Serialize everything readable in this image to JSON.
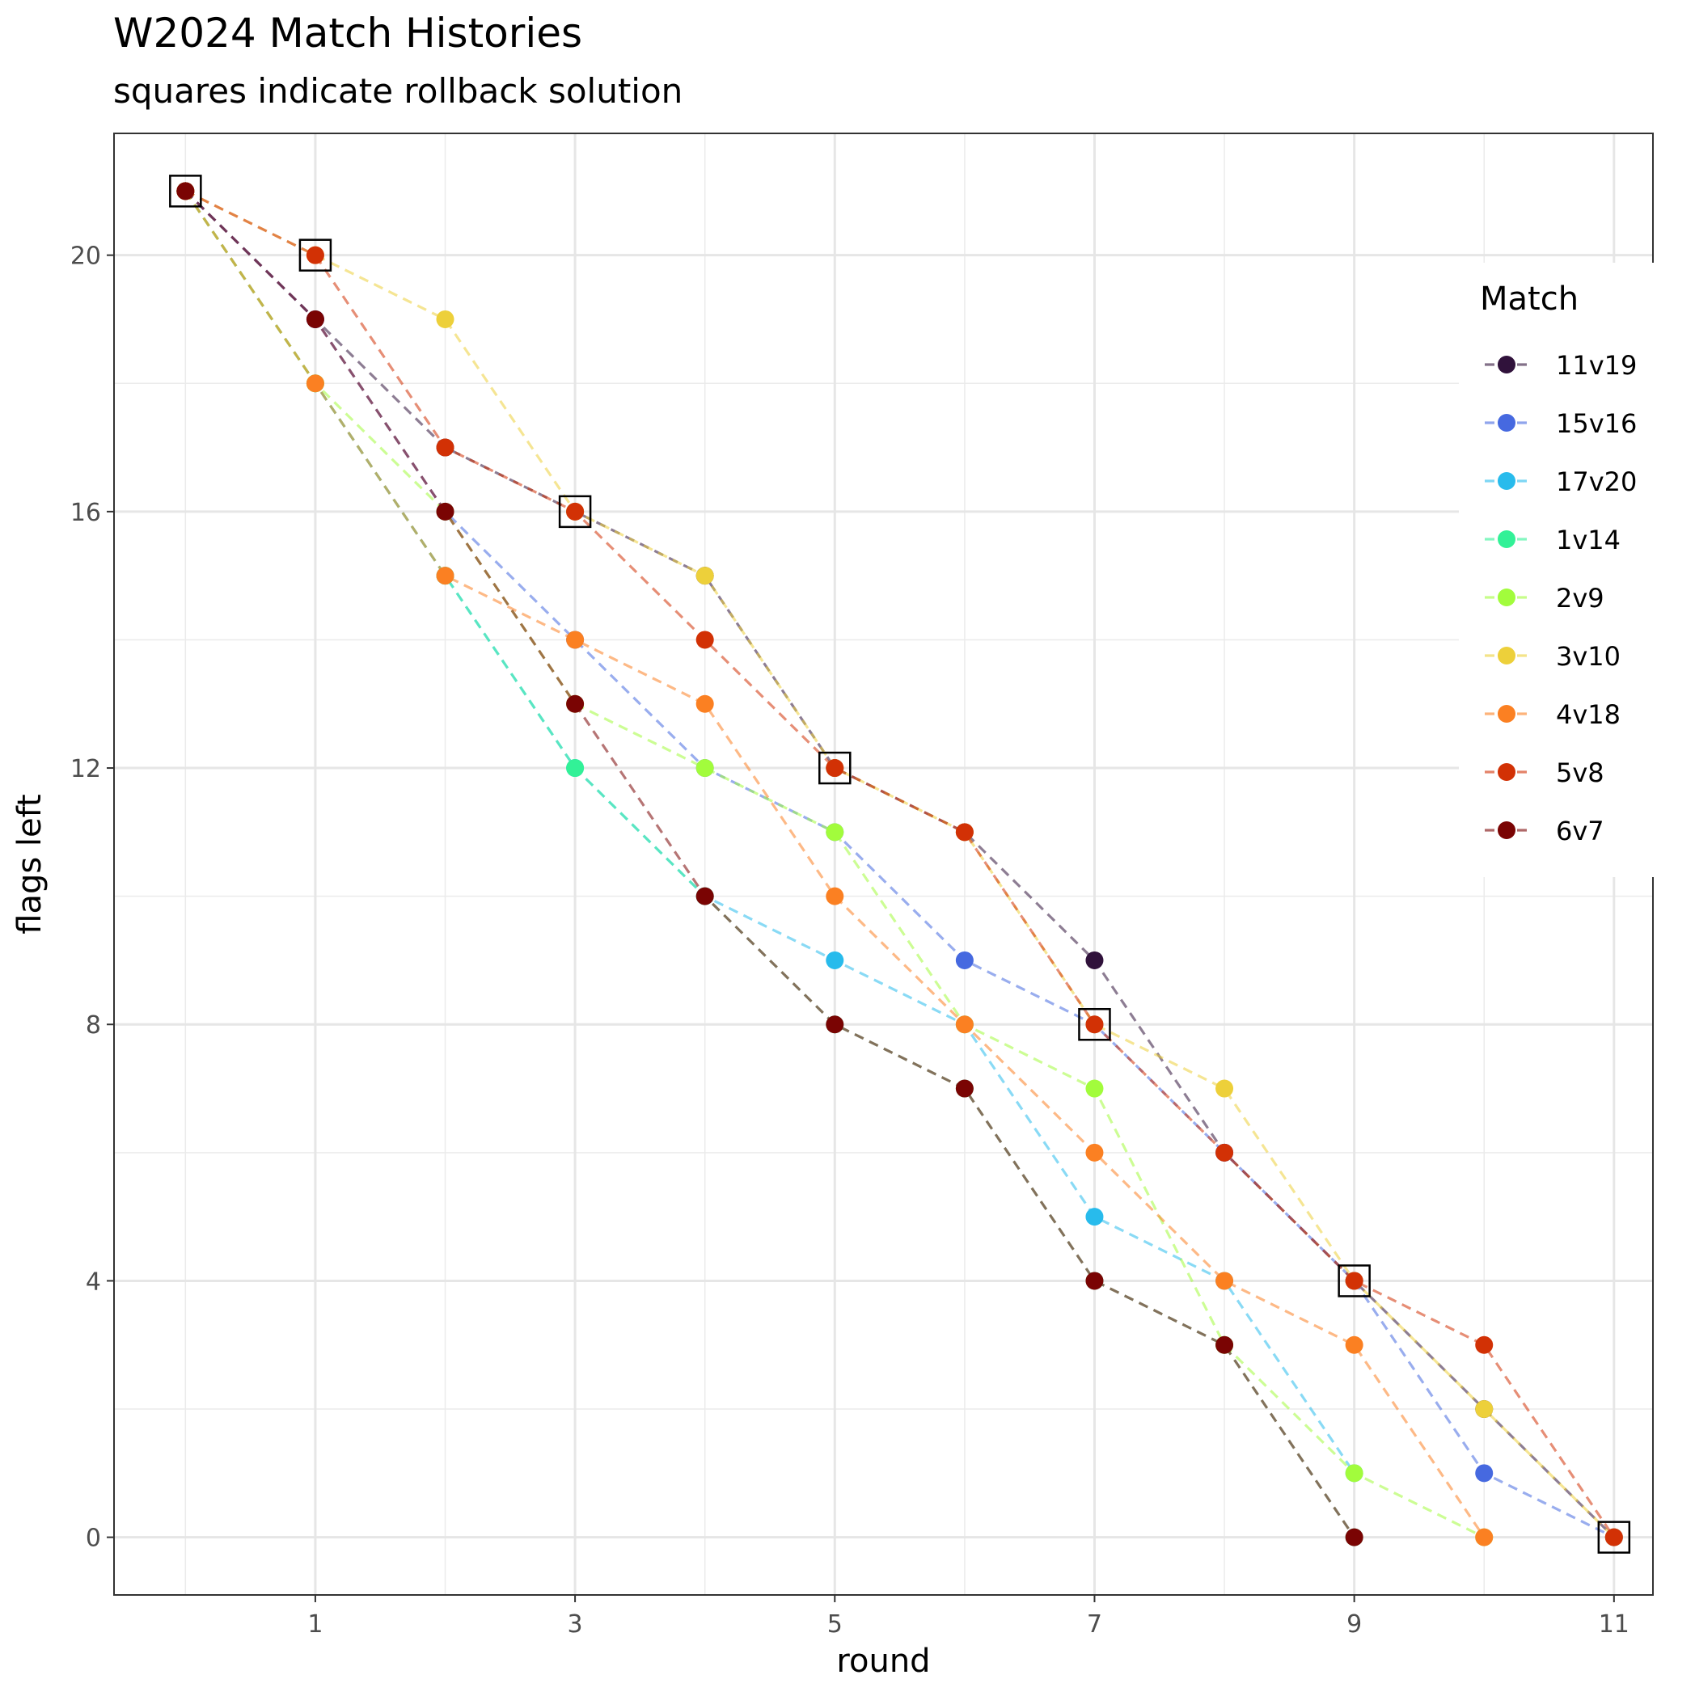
{
  "chart_data": {
    "type": "line",
    "title": "W2024 Match Histories",
    "subtitle": "squares indicate rollback solution",
    "xlabel": "round",
    "ylabel": "flags left",
    "xlim": [
      -0.55,
      11.3
    ],
    "ylim": [
      -0.9,
      21.9
    ],
    "x_ticks": [
      1,
      3,
      5,
      7,
      9,
      11
    ],
    "y_ticks": [
      0,
      4,
      8,
      12,
      16,
      20
    ],
    "grid": true,
    "legend_title": "Match",
    "legend_position": "right",
    "series": [
      {
        "name": "11v19",
        "color": "#30123B",
        "x": [
          0,
          1,
          2,
          3,
          4,
          5,
          6,
          7,
          8,
          9,
          10,
          11
        ],
        "values": [
          21,
          19,
          17,
          16,
          15,
          12,
          11,
          9,
          6,
          4,
          2,
          0
        ]
      },
      {
        "name": "15v16",
        "color": "#4669E0",
        "x": [
          0,
          1,
          2,
          3,
          4,
          5,
          6,
          7,
          8,
          9,
          10,
          11
        ],
        "values": [
          21,
          19,
          16,
          14,
          12,
          11,
          9,
          8,
          6,
          4,
          1,
          0
        ]
      },
      {
        "name": "17v20",
        "color": "#28BBEC",
        "x": [
          0,
          1,
          2,
          3,
          4,
          5,
          6,
          7,
          8,
          9
        ],
        "values": [
          21,
          18,
          15,
          12,
          10,
          9,
          8,
          5,
          4,
          1
        ]
      },
      {
        "name": "1v14",
        "color": "#32F197",
        "x": [
          0,
          1,
          2,
          3,
          4,
          5,
          6,
          7,
          8,
          9
        ],
        "values": [
          21,
          18,
          15,
          12,
          10,
          8,
          7,
          4,
          3,
          0
        ]
      },
      {
        "name": "2v9",
        "color": "#A2FC3C",
        "x": [
          0,
          1,
          2,
          3,
          4,
          5,
          6,
          7,
          8,
          9,
          10
        ],
        "values": [
          21,
          18,
          16,
          13,
          12,
          11,
          8,
          7,
          3,
          1,
          0
        ]
      },
      {
        "name": "3v10",
        "color": "#EDD03A",
        "x": [
          0,
          1,
          2,
          3,
          4,
          5,
          6,
          7,
          8,
          9,
          10,
          11
        ],
        "values": [
          21,
          20,
          19,
          16,
          15,
          12,
          11,
          8,
          7,
          4,
          2,
          0
        ]
      },
      {
        "name": "4v18",
        "color": "#FB8022",
        "x": [
          0,
          1,
          2,
          3,
          4,
          5,
          6,
          7,
          8,
          9,
          10
        ],
        "values": [
          21,
          18,
          15,
          14,
          13,
          10,
          8,
          6,
          4,
          3,
          0
        ]
      },
      {
        "name": "5v8",
        "color": "#D23105",
        "x": [
          0,
          1,
          2,
          3,
          4,
          5,
          6,
          7,
          8,
          9,
          10,
          11
        ],
        "values": [
          21,
          20,
          17,
          16,
          14,
          12,
          11,
          8,
          6,
          4,
          3,
          0
        ]
      },
      {
        "name": "6v7",
        "color": "#7A0403",
        "x": [
          0,
          1,
          2,
          3,
          4,
          5,
          6,
          7,
          8,
          9
        ],
        "values": [
          21,
          19,
          16,
          13,
          10,
          8,
          7,
          4,
          3,
          0
        ]
      }
    ],
    "rollback_squares": [
      {
        "x": 0,
        "y": 21
      },
      {
        "x": 1,
        "y": 20
      },
      {
        "x": 3,
        "y": 16
      },
      {
        "x": 5,
        "y": 12
      },
      {
        "x": 7,
        "y": 8
      },
      {
        "x": 9,
        "y": 4
      },
      {
        "x": 11,
        "y": 0
      }
    ]
  }
}
